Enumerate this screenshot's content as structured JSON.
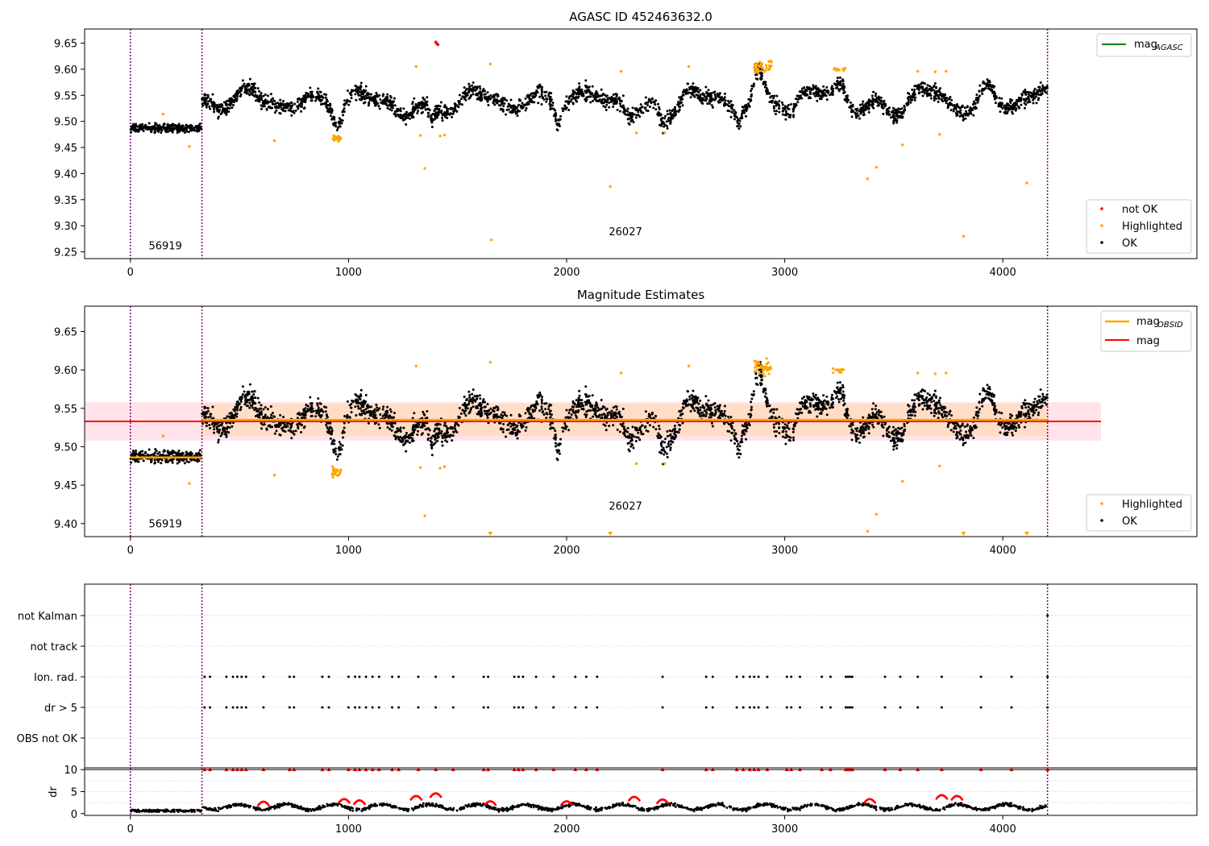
{
  "colors": {
    "ok": "#000000",
    "highlighted": "#ffa500",
    "not_ok": "#ff0000",
    "mag_agasc": "#008000",
    "mag_obsid": "#ffa500",
    "mag": "#ff0000",
    "vline": "#800080",
    "band_mag": "#ffc0cb",
    "band_obsid": "#ffdab9",
    "grid": "#b0b0b0"
  },
  "chart_data": [
    {
      "type": "scatter",
      "title": "AGASC ID 452463632.0",
      "xlabel": "",
      "ylabel": "",
      "xlim": [
        -210,
        4890
      ],
      "ylim": [
        9.237,
        9.677
      ],
      "x_ticks": [
        0,
        1000,
        2000,
        3000,
        4000
      ],
      "y_ticks": [
        9.25,
        9.3,
        9.35,
        9.4,
        9.45,
        9.5,
        9.55,
        9.6,
        9.65
      ],
      "vlines": [
        0,
        328,
        4205
      ],
      "annotations": [
        {
          "text": "56919",
          "x": 160,
          "y": 9.255
        },
        {
          "text": "26027",
          "x": 2270,
          "y": 9.282
        }
      ],
      "legend_lines": [
        {
          "label": "mag_AGASC",
          "main": "mag",
          "sub": "AGASC"
        }
      ],
      "legend_points": [
        "not OK",
        "Highlighted",
        "OK"
      ],
      "segments": [
        {
          "x0": 0,
          "x1": 328,
          "mean": 9.487,
          "spread": 0.007
        },
        {
          "x0": 328,
          "x1": 4205,
          "mean": 9.535,
          "spread": 0.014
        }
      ],
      "highlighted_points": [
        [
          150,
          9.514
        ],
        [
          270,
          9.452
        ],
        [
          660,
          9.463
        ],
        [
          1310,
          9.605
        ],
        [
          1330,
          9.473
        ],
        [
          1350,
          9.41
        ],
        [
          1420,
          9.472
        ],
        [
          1440,
          9.474
        ],
        [
          1650,
          9.61
        ],
        [
          1655,
          9.273
        ],
        [
          2200,
          9.375
        ],
        [
          2250,
          9.596
        ],
        [
          2320,
          9.478
        ],
        [
          2450,
          9.478
        ],
        [
          2560,
          9.605
        ],
        [
          3380,
          9.39
        ],
        [
          3420,
          9.412
        ],
        [
          3540,
          9.455
        ],
        [
          3610,
          9.596
        ],
        [
          3690,
          9.595
        ],
        [
          3710,
          9.475
        ],
        [
          3740,
          9.596
        ],
        [
          3820,
          9.28
        ],
        [
          4110,
          9.382
        ]
      ],
      "not_ok_points": [
        [
          1400,
          9.652
        ],
        [
          1405,
          9.649
        ],
        [
          1410,
          9.647
        ]
      ]
    },
    {
      "type": "scatter",
      "title": "Magnitude Estimates",
      "xlabel": "",
      "ylabel": "",
      "xlim": [
        -210,
        4890
      ],
      "ylim": [
        9.383,
        9.683
      ],
      "x_ticks": [
        0,
        1000,
        2000,
        3000,
        4000
      ],
      "y_ticks": [
        9.4,
        9.45,
        9.5,
        9.55,
        9.6,
        9.65
      ],
      "vlines": [
        0,
        328,
        4205
      ],
      "annotations": [
        {
          "text": "56919",
          "x": 160,
          "y": 9.395
        },
        {
          "text": "26027",
          "x": 2270,
          "y": 9.418
        }
      ],
      "legend_lines": [
        {
          "label": "mag_OBSID",
          "main": "mag",
          "sub": "OBSID"
        },
        {
          "label": "mag",
          "main": "mag",
          "sub": ""
        }
      ],
      "legend_points": [
        "Highlighted",
        "OK"
      ],
      "mag": {
        "value": 9.533,
        "band": [
          9.508,
          9.558
        ],
        "x_range": [
          -210,
          4450
        ]
      },
      "mag_obsid": [
        {
          "x0": 0,
          "x1": 328,
          "value": 9.486,
          "band": [
            9.482,
            9.49
          ]
        },
        {
          "x0": 328,
          "x1": 4205,
          "value": 9.535,
          "band": [
            9.514,
            9.556
          ]
        }
      ],
      "highlighted_points": [
        [
          150,
          9.514
        ],
        [
          270,
          9.452
        ],
        [
          660,
          9.463
        ],
        [
          1310,
          9.605
        ],
        [
          1330,
          9.473
        ],
        [
          1350,
          9.41
        ],
        [
          1420,
          9.472
        ],
        [
          1440,
          9.474
        ],
        [
          1650,
          9.61
        ],
        [
          2250,
          9.596
        ],
        [
          2320,
          9.478
        ],
        [
          2450,
          9.478
        ],
        [
          2560,
          9.605
        ],
        [
          3380,
          9.39
        ],
        [
          3420,
          9.412
        ],
        [
          3540,
          9.455
        ],
        [
          3610,
          9.596
        ],
        [
          3690,
          9.595
        ],
        [
          3710,
          9.475
        ],
        [
          3740,
          9.596
        ]
      ],
      "clipped_low_x": [
        1650,
        2200,
        3820,
        4110
      ]
    },
    {
      "type": "scatter",
      "title": "",
      "xlabel": "",
      "ylabel": "",
      "xlim": [
        -210,
        4890
      ],
      "categories": [
        "OBS not OK",
        "dr > 5",
        "Ion. rad.",
        "not track",
        "not Kalman"
      ],
      "vlines": [
        0,
        328,
        4205
      ],
      "flag_x": [
        340,
        365,
        440,
        470,
        490,
        510,
        530,
        610,
        730,
        750,
        880,
        910,
        1000,
        1030,
        1050,
        1080,
        1110,
        1140,
        1200,
        1230,
        1320,
        1400,
        1480,
        1620,
        1640,
        1760,
        1780,
        1800,
        1860,
        1940,
        2040,
        2090,
        2140,
        2440,
        2640,
        2670,
        2780,
        2810,
        2840,
        2860,
        2880,
        2920,
        3010,
        3030,
        3070,
        3170,
        3210,
        3280,
        3290,
        3300,
        3310,
        3460,
        3530,
        3610,
        3720,
        3900,
        4040,
        4205
      ],
      "kalman_x": [
        4205
      ]
    },
    {
      "type": "scatter",
      "title": "",
      "xlabel": "",
      "ylabel": "dr",
      "xlim": [
        -210,
        4890
      ],
      "ylim": [
        -0.4,
        10.4
      ],
      "x_ticks": [
        0,
        1000,
        2000,
        3000,
        4000
      ],
      "y_ticks": [
        0,
        5,
        10
      ],
      "vlines": [
        0,
        328,
        4205
      ],
      "clip_value": 10,
      "red_arcs": [
        [
          610,
          2.7
        ],
        [
          980,
          3.3
        ],
        [
          1050,
          3.0
        ],
        [
          1310,
          4.0
        ],
        [
          1400,
          4.6
        ],
        [
          1650,
          2.8
        ],
        [
          2000,
          2.8
        ],
        [
          2310,
          3.8
        ],
        [
          2440,
          3.2
        ],
        [
          3390,
          3.3
        ],
        [
          3720,
          4.2
        ],
        [
          3790,
          4.0
        ]
      ]
    }
  ]
}
